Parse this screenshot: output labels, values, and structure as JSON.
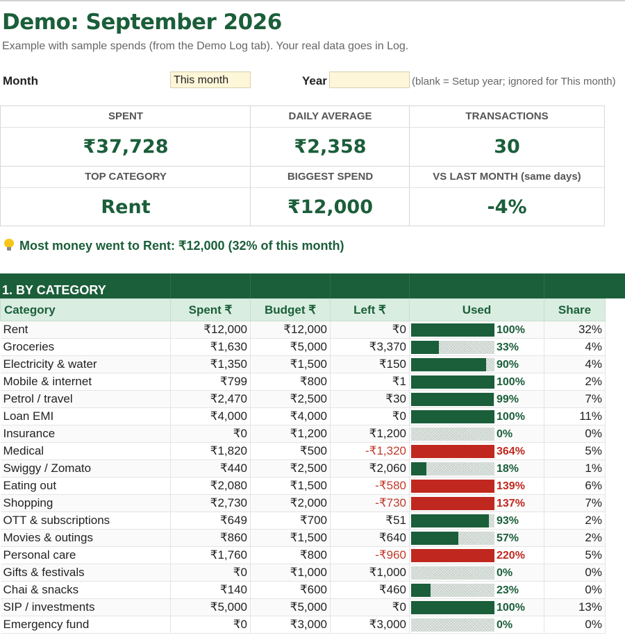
{
  "header": {
    "title": "Demo: September 2026",
    "subtitle": "Example with sample spends (from the Demo Log tab). Your real data goes in Log."
  },
  "controls": {
    "month_label": "Month",
    "month_value": "This month",
    "year_label": "Year",
    "year_value": "",
    "year_hint": "(blank = Setup year; ignored for This month)"
  },
  "kpis": {
    "spent": {
      "label": "SPENT",
      "value": "₹37,728"
    },
    "daily_average": {
      "label": "DAILY AVERAGE",
      "value": "₹2,358"
    },
    "transactions": {
      "label": "TRANSACTIONS",
      "value": "30"
    },
    "top_category": {
      "label": "TOP CATEGORY",
      "value": "Rent"
    },
    "biggest_spend": {
      "label": "BIGGEST SPEND",
      "value": "₹12,000"
    },
    "vs_last_month": {
      "label": "VS LAST MONTH (same days)",
      "value": "-4%"
    }
  },
  "insight": "Most money went to Rent: ₹12,000 (32% of this month)",
  "section": {
    "title": "1. BY CATEGORY",
    "columns": [
      "Category",
      "Spent ₹",
      "Budget ₹",
      "Left ₹",
      "Used",
      "Share"
    ]
  },
  "colors": {
    "brand_green": "#1b5e3a",
    "over_red": "#c0281f",
    "header_band": "#d9eee0",
    "input_fill": "#fdf6d8"
  },
  "categories": [
    {
      "name": "Rent",
      "spent": "₹12,000",
      "budget": "₹12,000",
      "left": "₹0",
      "used": "100%",
      "used_frac": 1.0,
      "share": "32%"
    },
    {
      "name": "Groceries",
      "spent": "₹1,630",
      "budget": "₹5,000",
      "left": "₹3,370",
      "used": "33%",
      "used_frac": 0.33,
      "share": "4%"
    },
    {
      "name": "Electricity & water",
      "spent": "₹1,350",
      "budget": "₹1,500",
      "left": "₹150",
      "used": "90%",
      "used_frac": 0.9,
      "share": "4%"
    },
    {
      "name": "Mobile & internet",
      "spent": "₹799",
      "budget": "₹800",
      "left": "₹1",
      "used": "100%",
      "used_frac": 1.0,
      "share": "2%"
    },
    {
      "name": "Petrol / travel",
      "spent": "₹2,470",
      "budget": "₹2,500",
      "left": "₹30",
      "used": "99%",
      "used_frac": 0.99,
      "share": "7%"
    },
    {
      "name": "Loan EMI",
      "spent": "₹4,000",
      "budget": "₹4,000",
      "left": "₹0",
      "used": "100%",
      "used_frac": 1.0,
      "share": "11%"
    },
    {
      "name": "Insurance",
      "spent": "₹0",
      "budget": "₹1,200",
      "left": "₹1,200",
      "used": "0%",
      "used_frac": 0,
      "share": "0%"
    },
    {
      "name": "Medical",
      "spent": "₹1,820",
      "budget": "₹500",
      "left": "-₹1,320",
      "used": "364%",
      "used_frac": 3.64,
      "share": "5%"
    },
    {
      "name": "Swiggy / Zomato",
      "spent": "₹440",
      "budget": "₹2,500",
      "left": "₹2,060",
      "used": "18%",
      "used_frac": 0.18,
      "share": "1%"
    },
    {
      "name": "Eating out",
      "spent": "₹2,080",
      "budget": "₹1,500",
      "left": "-₹580",
      "used": "139%",
      "used_frac": 1.39,
      "share": "6%"
    },
    {
      "name": "Shopping",
      "spent": "₹2,730",
      "budget": "₹2,000",
      "left": "-₹730",
      "used": "137%",
      "used_frac": 1.37,
      "share": "7%"
    },
    {
      "name": "OTT & subscriptions",
      "spent": "₹649",
      "budget": "₹700",
      "left": "₹51",
      "used": "93%",
      "used_frac": 0.93,
      "share": "2%"
    },
    {
      "name": "Movies & outings",
      "spent": "₹860",
      "budget": "₹1,500",
      "left": "₹640",
      "used": "57%",
      "used_frac": 0.57,
      "share": "2%"
    },
    {
      "name": "Personal care",
      "spent": "₹1,760",
      "budget": "₹800",
      "left": "-₹960",
      "used": "220%",
      "used_frac": 2.2,
      "share": "5%"
    },
    {
      "name": "Gifts & festivals",
      "spent": "₹0",
      "budget": "₹1,000",
      "left": "₹1,000",
      "used": "0%",
      "used_frac": 0,
      "share": "0%"
    },
    {
      "name": "Chai & snacks",
      "spent": "₹140",
      "budget": "₹600",
      "left": "₹460",
      "used": "23%",
      "used_frac": 0.23,
      "share": "0%"
    },
    {
      "name": "SIP / investments",
      "spent": "₹5,000",
      "budget": "₹5,000",
      "left": "₹0",
      "used": "100%",
      "used_frac": 1.0,
      "share": "13%"
    },
    {
      "name": "Emergency fund",
      "spent": "₹0",
      "budget": "₹3,000",
      "left": "₹3,000",
      "used": "0%",
      "used_frac": 0,
      "share": "0%"
    }
  ]
}
